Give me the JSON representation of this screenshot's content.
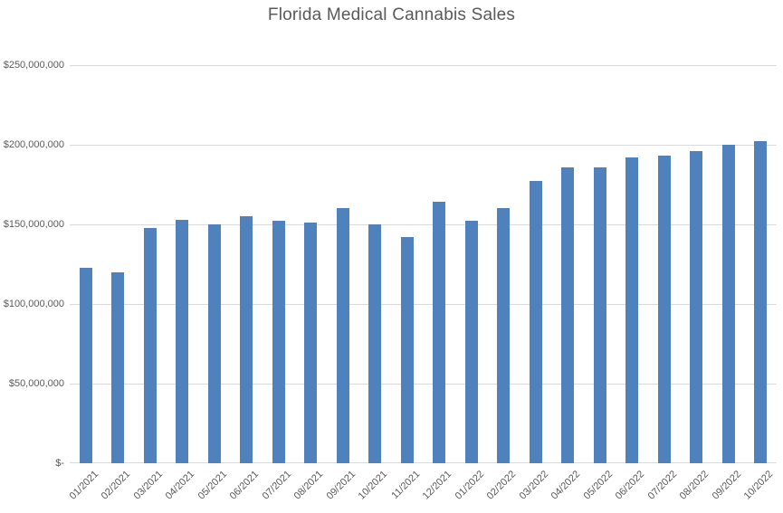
{
  "chart_data": {
    "type": "bar",
    "title": "Florida Medical Cannabis Sales",
    "categories": [
      "01/2021",
      "02/2021",
      "03/2021",
      "04/2021",
      "05/2021",
      "06/2021",
      "07/2021",
      "08/2021",
      "09/2021",
      "10/2021",
      "11/2021",
      "12/2021",
      "01/2022",
      "02/2022",
      "03/2022",
      "04/2022",
      "05/2022",
      "06/2022",
      "07/2022",
      "08/2022",
      "09/2022",
      "10/2022"
    ],
    "values": [
      123000000,
      120000000,
      148000000,
      153000000,
      150000000,
      155000000,
      152000000,
      151000000,
      160000000,
      150000000,
      142000000,
      164000000,
      152000000,
      160000000,
      177000000,
      186000000,
      186000000,
      192000000,
      193000000,
      196000000,
      200000000,
      202000000
    ],
    "y_tick_labels": [
      "$-",
      "$50,000,000",
      "$100,000,000",
      "$150,000,000",
      "$200,000,000",
      "$250,000,000"
    ],
    "ylim": [
      0,
      250000000
    ],
    "grid": true,
    "legend": "none",
    "xlabel": "",
    "ylabel": "",
    "bar_color": "#4F81BD",
    "gridline_color": "#D9D9D9",
    "text_color": "#595959"
  }
}
